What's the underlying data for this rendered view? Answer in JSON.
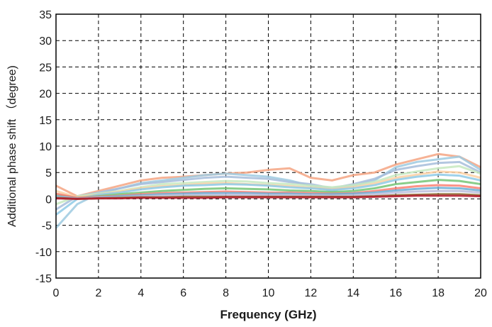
{
  "chart_data": {
    "type": "line",
    "title": "",
    "xlabel": "Frequency (GHz)",
    "ylabel": "Additional phase shift （degree)",
    "xlim": [
      0,
      20
    ],
    "ylim": [
      -15,
      35
    ],
    "xticks": [
      0,
      2,
      4,
      6,
      8,
      10,
      12,
      14,
      16,
      18,
      20
    ],
    "yticks": [
      -15,
      -10,
      -5,
      0,
      5,
      10,
      15,
      20,
      25,
      30,
      35
    ],
    "grid": true,
    "legend": "none",
    "x": [
      0,
      1,
      2,
      3,
      4,
      5,
      6,
      7,
      8,
      9,
      10,
      11,
      12,
      13,
      14,
      15,
      16,
      17,
      18,
      19,
      20
    ],
    "series": [
      {
        "color": "#f4a582",
        "values": [
          2.5,
          0.5,
          1.5,
          2.5,
          3.5,
          4.0,
          4.2,
          4.5,
          4.8,
          5.0,
          5.5,
          5.8,
          4.0,
          3.5,
          4.5,
          5.0,
          6.5,
          7.5,
          8.5,
          8.0,
          6.0
        ]
      },
      {
        "color": "#9ecae1",
        "values": [
          -5.5,
          -1.0,
          1.0,
          2.0,
          3.0,
          3.5,
          4.0,
          4.5,
          4.8,
          4.5,
          4.2,
          3.5,
          2.5,
          1.5,
          2.5,
          3.5,
          6.0,
          7.0,
          7.5,
          8.0,
          5.5
        ]
      },
      {
        "color": "#a6bddb",
        "values": [
          -2.0,
          0.5,
          1.2,
          2.0,
          2.8,
          3.2,
          3.6,
          4.0,
          4.2,
          4.0,
          3.8,
          3.2,
          2.8,
          2.0,
          2.8,
          3.8,
          5.5,
          6.2,
          6.8,
          7.0,
          5.0
        ]
      },
      {
        "color": "#c7e9c0",
        "values": [
          -1.0,
          0.5,
          1.0,
          1.5,
          2.2,
          2.8,
          3.0,
          3.2,
          3.4,
          3.3,
          3.0,
          2.8,
          2.5,
          2.2,
          2.6,
          3.2,
          4.5,
          5.2,
          5.8,
          6.2,
          4.8
        ]
      },
      {
        "color": "#fdd0a2",
        "values": [
          1.5,
          0.3,
          0.8,
          1.4,
          2.0,
          2.4,
          2.6,
          2.9,
          3.0,
          2.8,
          2.6,
          2.4,
          2.1,
          1.8,
          2.2,
          2.9,
          4.0,
          4.6,
          5.2,
          5.0,
          4.0
        ]
      },
      {
        "color": "#8ecae6",
        "values": [
          -3.0,
          0.0,
          0.8,
          1.2,
          1.8,
          2.2,
          2.5,
          2.6,
          2.8,
          2.7,
          2.5,
          2.2,
          2.0,
          1.7,
          2.0,
          2.6,
          3.6,
          4.2,
          4.6,
          4.4,
          3.5
        ]
      },
      {
        "color": "#74c476",
        "values": [
          0.8,
          0.2,
          0.5,
          0.9,
          1.2,
          1.5,
          1.7,
          1.9,
          2.0,
          1.9,
          1.8,
          1.6,
          1.5,
          1.3,
          1.5,
          2.0,
          2.8,
          3.2,
          3.6,
          3.4,
          2.8
        ]
      },
      {
        "color": "#fb8072",
        "values": [
          1.0,
          0.2,
          0.4,
          0.6,
          0.9,
          1.1,
          1.2,
          1.3,
          1.4,
          1.3,
          1.2,
          1.2,
          1.1,
          1.0,
          1.1,
          1.5,
          2.0,
          2.4,
          2.6,
          2.5,
          2.0
        ]
      },
      {
        "color": "#6baed6",
        "values": [
          0.5,
          0.1,
          0.3,
          0.5,
          0.7,
          0.9,
          1.0,
          1.1,
          1.1,
          1.1,
          1.0,
          1.0,
          0.9,
          0.9,
          1.0,
          1.2,
          1.6,
          1.9,
          2.1,
          2.0,
          1.6
        ]
      },
      {
        "color": "#bcbddc",
        "values": [
          0.3,
          0.1,
          0.2,
          0.3,
          0.5,
          0.6,
          0.7,
          0.7,
          0.8,
          0.8,
          0.7,
          0.7,
          0.7,
          0.6,
          0.7,
          0.9,
          1.2,
          1.4,
          1.5,
          1.5,
          1.2
        ]
      },
      {
        "color": "#8c6d31",
        "values": [
          0.2,
          0.0,
          0.1,
          0.2,
          0.3,
          0.3,
          0.4,
          0.4,
          0.4,
          0.4,
          0.4,
          0.4,
          0.4,
          0.4,
          0.4,
          0.5,
          0.7,
          0.8,
          0.9,
          0.9,
          0.7
        ]
      },
      {
        "color": "#b2182b",
        "values": [
          0.1,
          0.0,
          0.1,
          0.1,
          0.2,
          0.2,
          0.2,
          0.2,
          0.3,
          0.3,
          0.3,
          0.3,
          0.3,
          0.3,
          0.3,
          0.4,
          0.5,
          0.6,
          0.6,
          0.6,
          0.5
        ]
      }
    ]
  }
}
